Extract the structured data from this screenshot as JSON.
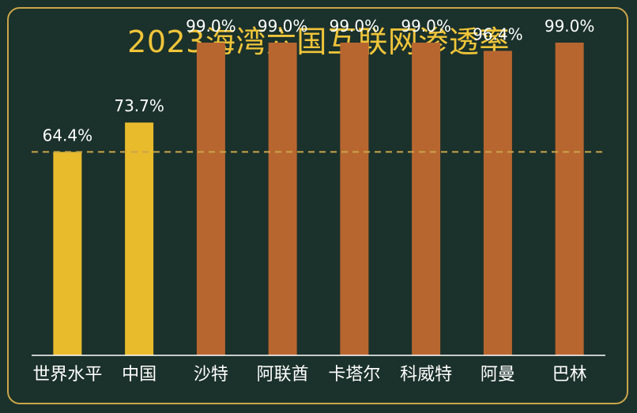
{
  "chart_data": {
    "type": "bar",
    "title": "2023海湾六国互联网渗透率",
    "categories": [
      "世界水平",
      "中国",
      "沙特",
      "阿联酋",
      "卡塔尔",
      "科威特",
      "阿曼",
      "巴林"
    ],
    "values": [
      64.4,
      73.7,
      99.0,
      99.0,
      99.0,
      99.0,
      96.4,
      99.0
    ],
    "value_labels": [
      "64.4%",
      "73.7%",
      "99.0%",
      "99.0%",
      "99.0%",
      "99.0%",
      "96.4%",
      "99.0%"
    ],
    "bar_colors": [
      "#e8bb2d",
      "#e8bb2d",
      "#b86630",
      "#b86630",
      "#b86630",
      "#b86630",
      "#b86630",
      "#b86630"
    ],
    "reference_line": 64.4,
    "reference_line_color": "#c9a54a",
    "ylim": [
      0,
      100
    ],
    "xlabel": "",
    "ylabel": ""
  },
  "colors": {
    "background": "#1b312b",
    "border": "#c9a54a",
    "title": "#f0c53a",
    "axis": "#ffffff",
    "text": "#ffffff"
  }
}
